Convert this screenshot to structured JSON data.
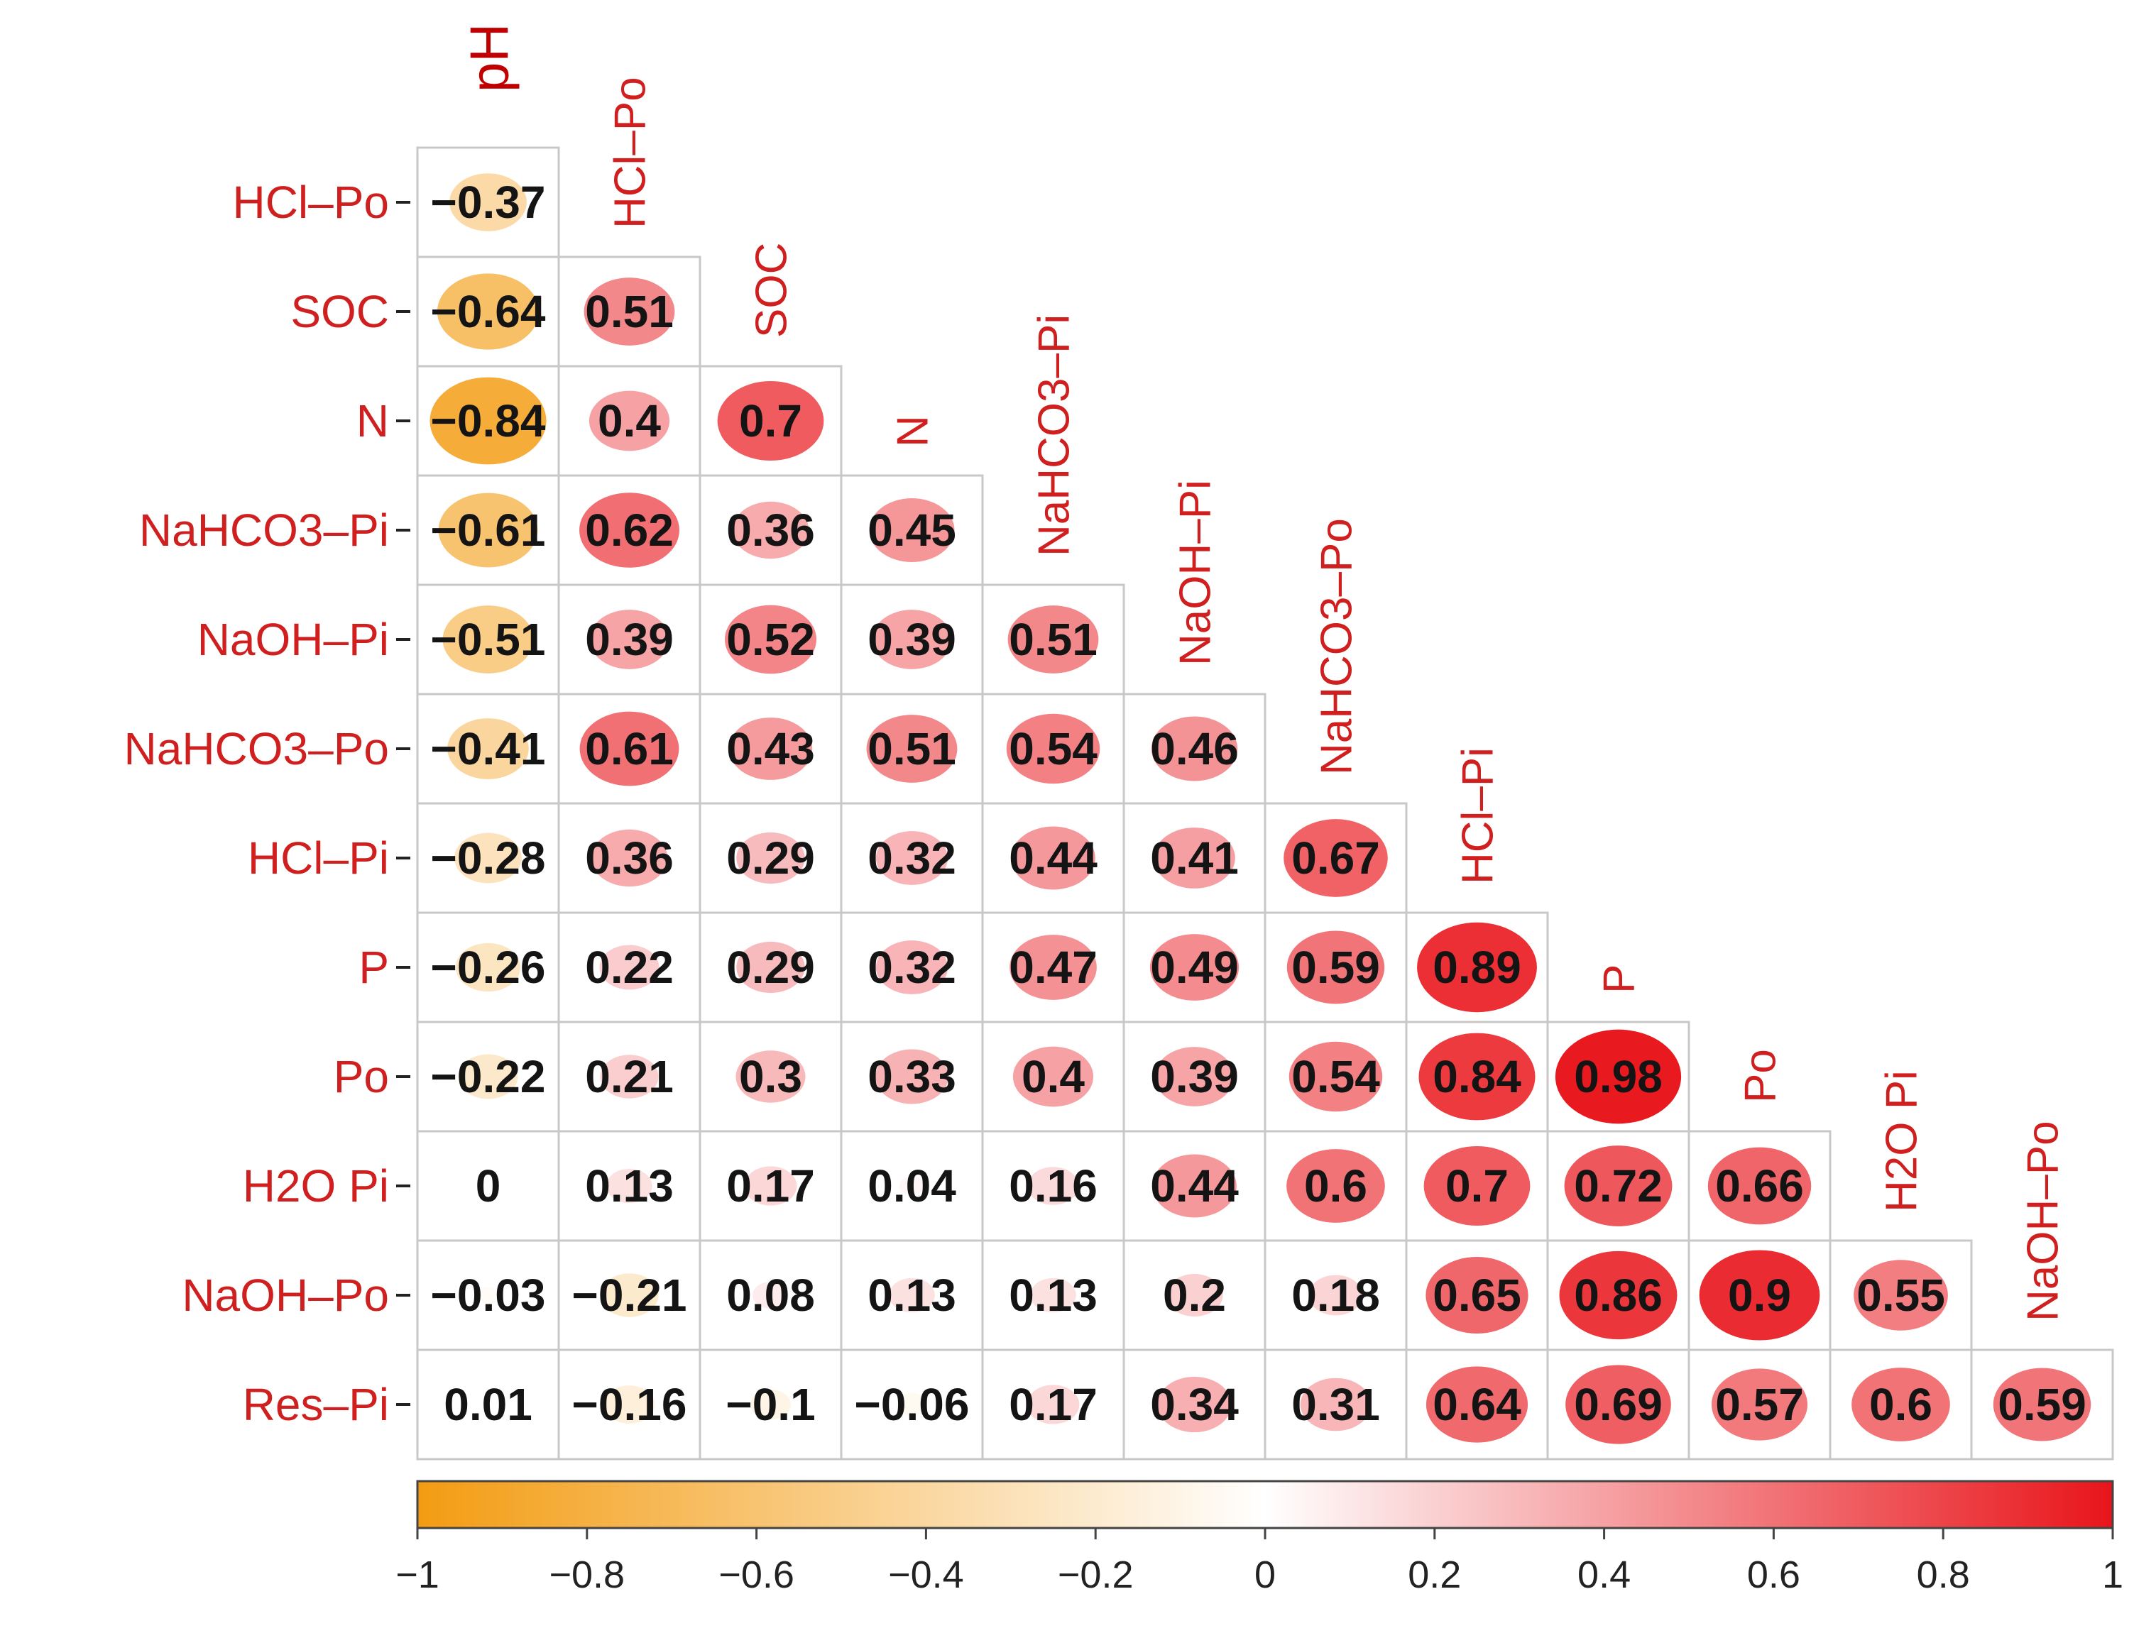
{
  "chart_data": {
    "type": "heatmap",
    "subtype": "lower-triangular correlation matrix (ellipse glyphs)",
    "columns": [
      "pH",
      "HCl–Po",
      "SOC",
      "N",
      "NaHCO3–Pi",
      "NaOH–Pi",
      "NaHCO3–Po",
      "HCl–Pi",
      "P",
      "Po",
      "H2O Pi",
      "NaOH–Po"
    ],
    "rows": [
      "HCl–Po",
      "SOC",
      "N",
      "NaHCO3–Pi",
      "NaOH–Pi",
      "NaHCO3–Po",
      "HCl–Pi",
      "P",
      "Po",
      "H2O Pi",
      "NaOH–Po",
      "Res–Pi"
    ],
    "values": [
      [
        -0.37
      ],
      [
        -0.64,
        0.51
      ],
      [
        -0.84,
        0.4,
        0.7
      ],
      [
        -0.61,
        0.62,
        0.36,
        0.45
      ],
      [
        -0.51,
        0.39,
        0.52,
        0.39,
        0.51
      ],
      [
        -0.41,
        0.61,
        0.43,
        0.51,
        0.54,
        0.46
      ],
      [
        -0.28,
        0.36,
        0.29,
        0.32,
        0.44,
        0.41,
        0.67
      ],
      [
        -0.26,
        0.22,
        0.29,
        0.32,
        0.47,
        0.49,
        0.59,
        0.89
      ],
      [
        -0.22,
        0.21,
        0.3,
        0.33,
        0.4,
        0.39,
        0.54,
        0.84,
        0.98
      ],
      [
        0,
        0.13,
        0.17,
        0.04,
        0.16,
        0.44,
        0.6,
        0.7,
        0.72,
        0.66
      ],
      [
        -0.03,
        -0.21,
        0.08,
        0.13,
        0.13,
        0.2,
        0.18,
        0.65,
        0.86,
        0.9,
        0.55
      ],
      [
        0.01,
        -0.16,
        -0.1,
        -0.06,
        0.17,
        0.34,
        0.31,
        0.64,
        0.69,
        0.57,
        0.6,
        0.59
      ]
    ],
    "value_labels": [
      [
        "−0.37"
      ],
      [
        "−0.64",
        "0.51"
      ],
      [
        "−0.84",
        "0.4",
        "0.7"
      ],
      [
        "−0.61",
        "0.62",
        "0.36",
        "0.45"
      ],
      [
        "−0.51",
        "0.39",
        "0.52",
        "0.39",
        "0.51"
      ],
      [
        "−0.41",
        "0.61",
        "0.43",
        "0.51",
        "0.54",
        "0.46"
      ],
      [
        "−0.28",
        "0.36",
        "0.29",
        "0.32",
        "0.44",
        "0.41",
        "0.67"
      ],
      [
        "−0.26",
        "0.22",
        "0.29",
        "0.32",
        "0.47",
        "0.49",
        "0.59",
        "0.89"
      ],
      [
        "−0.22",
        "0.21",
        "0.3",
        "0.33",
        "0.4",
        "0.39",
        "0.54",
        "0.84",
        "0.98"
      ],
      [
        "0",
        "0.13",
        "0.17",
        "0.04",
        "0.16",
        "0.44",
        "0.6",
        "0.7",
        "0.72",
        "0.66"
      ],
      [
        "−0.03",
        "−0.21",
        "0.08",
        "0.13",
        "0.13",
        "0.2",
        "0.18",
        "0.65",
        "0.86",
        "0.9",
        "0.55"
      ],
      [
        "0.01",
        "−0.16",
        "−0.1",
        "−0.06",
        "0.17",
        "0.34",
        "0.31",
        "0.64",
        "0.69",
        "0.57",
        "0.6",
        "0.59"
      ]
    ],
    "colorbar": {
      "range": [
        -1,
        1
      ],
      "ticks": [
        -1,
        -0.8,
        -0.6,
        -0.4,
        -0.2,
        0,
        0.2,
        0.4,
        0.6,
        0.8,
        1
      ],
      "tick_labels": [
        "−1",
        "−0.8",
        "−0.6",
        "−0.4",
        "−0.2",
        "0",
        "0.2",
        "0.4",
        "0.6",
        "0.8",
        "1"
      ],
      "low_color": "#F39C12",
      "mid_color": "#FFFFFF",
      "high_color": "#E8151B"
    },
    "grid": true,
    "legend_position": "bottom"
  },
  "colors": {
    "label_text": "#D01F1F",
    "value_text": "#141414",
    "cell_border": "#C8C8C8"
  }
}
